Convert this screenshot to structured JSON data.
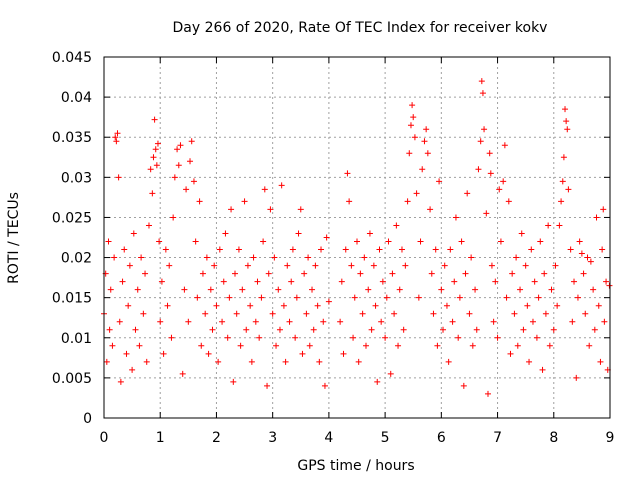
{
  "chart_data": {
    "type": "scatter",
    "title": "Day 266 of 2020, Rate Of TEC Index for receiver kokv",
    "xlabel": "GPS time / hours",
    "ylabel": "ROTI / TECUs",
    "xlim": [
      0,
      9
    ],
    "ylim": [
      0,
      0.045
    ],
    "x_ticks": [
      0,
      1,
      2,
      3,
      4,
      5,
      6,
      7,
      8,
      9
    ],
    "x_tick_labels": [
      "0",
      "1",
      "2",
      "3",
      "4",
      "5",
      "6",
      "7",
      "8",
      "9"
    ],
    "y_ticks": [
      0,
      0.005,
      0.01,
      0.015,
      0.02,
      0.025,
      0.03,
      0.035,
      0.04,
      0.045
    ],
    "y_tick_labels": [
      "0",
      "0.005",
      "0.01",
      "0.015",
      "0.02",
      "0.025",
      "0.03",
      "0.035",
      "0.04",
      "0.045"
    ],
    "grid": true,
    "marker": "+",
    "color": "#ff0000",
    "series": [
      {
        "name": "ROTI",
        "points": [
          [
            0.0,
            0.013
          ],
          [
            0.03,
            0.018
          ],
          [
            0.05,
            0.007
          ],
          [
            0.08,
            0.022
          ],
          [
            0.1,
            0.011
          ],
          [
            0.12,
            0.016
          ],
          [
            0.15,
            0.009
          ],
          [
            0.18,
            0.02
          ],
          [
            0.2,
            0.035
          ],
          [
            0.22,
            0.0345
          ],
          [
            0.24,
            0.0355
          ],
          [
            0.26,
            0.03
          ],
          [
            0.28,
            0.012
          ],
          [
            0.3,
            0.0045
          ],
          [
            0.33,
            0.017
          ],
          [
            0.36,
            0.021
          ],
          [
            0.4,
            0.008
          ],
          [
            0.43,
            0.014
          ],
          [
            0.46,
            0.019
          ],
          [
            0.5,
            0.006
          ],
          [
            0.53,
            0.023
          ],
          [
            0.56,
            0.011
          ],
          [
            0.6,
            0.016
          ],
          [
            0.63,
            0.009
          ],
          [
            0.66,
            0.02
          ],
          [
            0.7,
            0.013
          ],
          [
            0.73,
            0.018
          ],
          [
            0.76,
            0.007
          ],
          [
            0.8,
            0.024
          ],
          [
            0.83,
            0.031
          ],
          [
            0.86,
            0.028
          ],
          [
            0.88,
            0.0325
          ],
          [
            0.9,
            0.0372
          ],
          [
            0.92,
            0.0335
          ],
          [
            0.94,
            0.0315
          ],
          [
            0.96,
            0.0342
          ],
          [
            0.98,
            0.022
          ],
          [
            1.0,
            0.012
          ],
          [
            1.03,
            0.017
          ],
          [
            1.06,
            0.008
          ],
          [
            1.1,
            0.021
          ],
          [
            1.13,
            0.014
          ],
          [
            1.16,
            0.019
          ],
          [
            1.2,
            0.01
          ],
          [
            1.23,
            0.025
          ],
          [
            1.26,
            0.03
          ],
          [
            1.3,
            0.0335
          ],
          [
            1.33,
            0.0315
          ],
          [
            1.36,
            0.034
          ],
          [
            1.4,
            0.0055
          ],
          [
            1.43,
            0.016
          ],
          [
            1.46,
            0.0285
          ],
          [
            1.5,
            0.012
          ],
          [
            1.53,
            0.032
          ],
          [
            1.56,
            0.0345
          ],
          [
            1.6,
            0.0295
          ],
          [
            1.63,
            0.022
          ],
          [
            1.66,
            0.015
          ],
          [
            1.7,
            0.027
          ],
          [
            1.73,
            0.009
          ],
          [
            1.76,
            0.018
          ],
          [
            1.8,
            0.013
          ],
          [
            1.83,
            0.02
          ],
          [
            1.86,
            0.008
          ],
          [
            1.9,
            0.016
          ],
          [
            1.93,
            0.011
          ],
          [
            1.96,
            0.019
          ],
          [
            2.0,
            0.014
          ],
          [
            2.03,
            0.007
          ],
          [
            2.06,
            0.021
          ],
          [
            2.1,
            0.012
          ],
          [
            2.13,
            0.017
          ],
          [
            2.16,
            0.023
          ],
          [
            2.2,
            0.01
          ],
          [
            2.23,
            0.015
          ],
          [
            2.26,
            0.026
          ],
          [
            2.3,
            0.0045
          ],
          [
            2.33,
            0.018
          ],
          [
            2.36,
            0.013
          ],
          [
            2.4,
            0.021
          ],
          [
            2.43,
            0.009
          ],
          [
            2.46,
            0.016
          ],
          [
            2.5,
            0.027
          ],
          [
            2.53,
            0.011
          ],
          [
            2.56,
            0.019
          ],
          [
            2.6,
            0.014
          ],
          [
            2.63,
            0.007
          ],
          [
            2.66,
            0.02
          ],
          [
            2.7,
            0.012
          ],
          [
            2.73,
            0.017
          ],
          [
            2.76,
            0.01
          ],
          [
            2.8,
            0.015
          ],
          [
            2.83,
            0.022
          ],
          [
            2.86,
            0.0285
          ],
          [
            2.9,
            0.004
          ],
          [
            2.93,
            0.018
          ],
          [
            2.96,
            0.026
          ],
          [
            3.0,
            0.013
          ],
          [
            3.03,
            0.02
          ],
          [
            3.06,
            0.009
          ],
          [
            3.1,
            0.016
          ],
          [
            3.13,
            0.011
          ],
          [
            3.16,
            0.029
          ],
          [
            3.2,
            0.014
          ],
          [
            3.23,
            0.007
          ],
          [
            3.26,
            0.019
          ],
          [
            3.3,
            0.012
          ],
          [
            3.33,
            0.017
          ],
          [
            3.36,
            0.021
          ],
          [
            3.4,
            0.01
          ],
          [
            3.43,
            0.015
          ],
          [
            3.46,
            0.023
          ],
          [
            3.5,
            0.026
          ],
          [
            3.53,
            0.008
          ],
          [
            3.56,
            0.018
          ],
          [
            3.6,
            0.013
          ],
          [
            3.63,
            0.02
          ],
          [
            3.66,
            0.009
          ],
          [
            3.7,
            0.016
          ],
          [
            3.73,
            0.011
          ],
          [
            3.76,
            0.019
          ],
          [
            3.8,
            0.014
          ],
          [
            3.83,
            0.007
          ],
          [
            3.86,
            0.021
          ],
          [
            3.9,
            0.012
          ],
          [
            3.93,
            0.004
          ],
          [
            3.96,
            0.0225
          ],
          [
            4.0,
            0.0145
          ],
          [
            4.2,
            0.012
          ],
          [
            4.23,
            0.017
          ],
          [
            4.26,
            0.008
          ],
          [
            4.3,
            0.021
          ],
          [
            4.33,
            0.0305
          ],
          [
            4.36,
            0.027
          ],
          [
            4.4,
            0.019
          ],
          [
            4.43,
            0.01
          ],
          [
            4.46,
            0.015
          ],
          [
            4.5,
            0.022
          ],
          [
            4.53,
            0.007
          ],
          [
            4.56,
            0.018
          ],
          [
            4.6,
            0.013
          ],
          [
            4.63,
            0.02
          ],
          [
            4.66,
            0.009
          ],
          [
            4.7,
            0.016
          ],
          [
            4.73,
            0.023
          ],
          [
            4.76,
            0.011
          ],
          [
            4.8,
            0.019
          ],
          [
            4.83,
            0.014
          ],
          [
            4.86,
            0.0045
          ],
          [
            4.9,
            0.021
          ],
          [
            4.93,
            0.012
          ],
          [
            4.96,
            0.017
          ],
          [
            5.0,
            0.01
          ],
          [
            5.03,
            0.015
          ],
          [
            5.06,
            0.022
          ],
          [
            5.1,
            0.0055
          ],
          [
            5.13,
            0.018
          ],
          [
            5.16,
            0.013
          ],
          [
            5.2,
            0.024
          ],
          [
            5.23,
            0.009
          ],
          [
            5.26,
            0.016
          ],
          [
            5.3,
            0.021
          ],
          [
            5.33,
            0.011
          ],
          [
            5.36,
            0.019
          ],
          [
            5.4,
            0.027
          ],
          [
            5.43,
            0.033
          ],
          [
            5.46,
            0.0365
          ],
          [
            5.48,
            0.039
          ],
          [
            5.5,
            0.0375
          ],
          [
            5.53,
            0.035
          ],
          [
            5.56,
            0.028
          ],
          [
            5.6,
            0.015
          ],
          [
            5.63,
            0.022
          ],
          [
            5.66,
            0.031
          ],
          [
            5.7,
            0.0345
          ],
          [
            5.73,
            0.036
          ],
          [
            5.76,
            0.033
          ],
          [
            5.8,
            0.026
          ],
          [
            5.83,
            0.018
          ],
          [
            5.86,
            0.013
          ],
          [
            5.9,
            0.021
          ],
          [
            5.93,
            0.009
          ],
          [
            5.96,
            0.0295
          ],
          [
            6.0,
            0.016
          ],
          [
            6.03,
            0.011
          ],
          [
            6.06,
            0.019
          ],
          [
            6.1,
            0.014
          ],
          [
            6.13,
            0.007
          ],
          [
            6.16,
            0.021
          ],
          [
            6.2,
            0.012
          ],
          [
            6.23,
            0.017
          ],
          [
            6.26,
            0.025
          ],
          [
            6.3,
            0.01
          ],
          [
            6.33,
            0.015
          ],
          [
            6.36,
            0.022
          ],
          [
            6.4,
            0.004
          ],
          [
            6.43,
            0.018
          ],
          [
            6.46,
            0.028
          ],
          [
            6.5,
            0.013
          ],
          [
            6.53,
            0.02
          ],
          [
            6.56,
            0.009
          ],
          [
            6.6,
            0.016
          ],
          [
            6.63,
            0.011
          ],
          [
            6.66,
            0.031
          ],
          [
            6.7,
            0.0345
          ],
          [
            6.72,
            0.042
          ],
          [
            6.74,
            0.0405
          ],
          [
            6.76,
            0.036
          ],
          [
            6.8,
            0.0255
          ],
          [
            6.83,
            0.003
          ],
          [
            6.86,
            0.033
          ],
          [
            6.88,
            0.0305
          ],
          [
            6.9,
            0.019
          ],
          [
            6.93,
            0.012
          ],
          [
            6.96,
            0.017
          ],
          [
            7.0,
            0.01
          ],
          [
            7.03,
            0.0285
          ],
          [
            7.06,
            0.022
          ],
          [
            7.1,
            0.0295
          ],
          [
            7.13,
            0.034
          ],
          [
            7.16,
            0.015
          ],
          [
            7.2,
            0.027
          ],
          [
            7.23,
            0.008
          ],
          [
            7.26,
            0.018
          ],
          [
            7.3,
            0.013
          ],
          [
            7.33,
            0.02
          ],
          [
            7.36,
            0.009
          ],
          [
            7.4,
            0.016
          ],
          [
            7.43,
            0.023
          ],
          [
            7.46,
            0.011
          ],
          [
            7.5,
            0.019
          ],
          [
            7.53,
            0.014
          ],
          [
            7.56,
            0.007
          ],
          [
            7.6,
            0.021
          ],
          [
            7.63,
            0.012
          ],
          [
            7.66,
            0.017
          ],
          [
            7.7,
            0.01
          ],
          [
            7.73,
            0.015
          ],
          [
            7.76,
            0.022
          ],
          [
            7.8,
            0.006
          ],
          [
            7.83,
            0.018
          ],
          [
            7.86,
            0.013
          ],
          [
            7.9,
            0.024
          ],
          [
            7.93,
            0.009
          ],
          [
            7.96,
            0.016
          ],
          [
            8.0,
            0.011
          ],
          [
            8.03,
            0.019
          ],
          [
            8.06,
            0.014
          ],
          [
            8.1,
            0.024
          ],
          [
            8.13,
            0.027
          ],
          [
            8.16,
            0.0295
          ],
          [
            8.18,
            0.0325
          ],
          [
            8.2,
            0.0385
          ],
          [
            8.22,
            0.037
          ],
          [
            8.24,
            0.036
          ],
          [
            8.26,
            0.0285
          ],
          [
            8.3,
            0.021
          ],
          [
            8.33,
            0.012
          ],
          [
            8.36,
            0.017
          ],
          [
            8.4,
            0.005
          ],
          [
            8.43,
            0.015
          ],
          [
            8.46,
            0.022
          ],
          [
            8.5,
            0.0205
          ],
          [
            8.53,
            0.018
          ],
          [
            8.56,
            0.013
          ],
          [
            8.6,
            0.02
          ],
          [
            8.63,
            0.009
          ],
          [
            8.66,
            0.0195
          ],
          [
            8.7,
            0.016
          ],
          [
            8.73,
            0.011
          ],
          [
            8.76,
            0.025
          ],
          [
            8.8,
            0.014
          ],
          [
            8.83,
            0.007
          ],
          [
            8.86,
            0.021
          ],
          [
            8.88,
            0.026
          ],
          [
            8.9,
            0.012
          ],
          [
            8.93,
            0.017
          ],
          [
            8.96,
            0.006
          ],
          [
            8.99,
            0.0165
          ]
        ]
      }
    ]
  }
}
